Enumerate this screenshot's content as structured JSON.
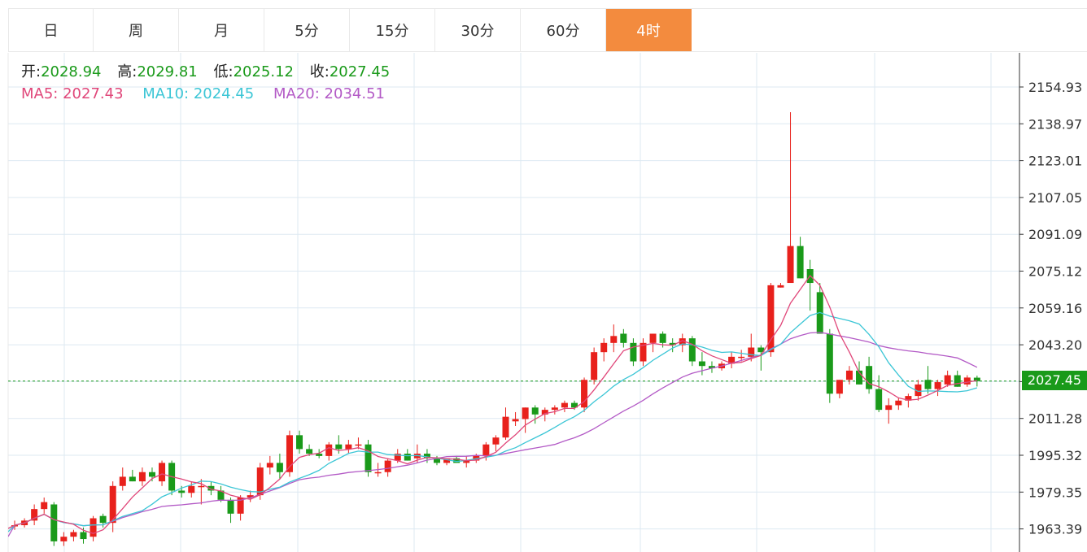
{
  "tabs": [
    {
      "label": "日",
      "active": false
    },
    {
      "label": "周",
      "active": false
    },
    {
      "label": "月",
      "active": false
    },
    {
      "label": "5分",
      "active": false
    },
    {
      "label": "15分",
      "active": false
    },
    {
      "label": "30分",
      "active": false
    },
    {
      "label": "60分",
      "active": false
    },
    {
      "label": "4时",
      "active": true
    }
  ],
  "ohlc": {
    "open_label": "开:",
    "open": "2028.94",
    "high_label": "高:",
    "high": "2029.81",
    "low_label": "低:",
    "low": "2025.12",
    "close_label": "收:",
    "close": "2027.45"
  },
  "ma": {
    "ma5_label": "MA5:",
    "ma5": "2027.43",
    "ma10_label": "MA10:",
    "ma10": "2024.45",
    "ma20_label": "MA20:",
    "ma20": "2034.51"
  },
  "colors": {
    "up": "#e8211c",
    "down": "#1a9a1a",
    "ma5": "#e0477a",
    "ma10": "#3cc6d6",
    "ma20": "#b35ac6",
    "grid": "#dde9f2",
    "active_tab": "#f38b3e"
  },
  "chart_data": {
    "type": "candlestick",
    "y_ticks": [
      "2154.93",
      "2138.97",
      "2123.01",
      "2107.05",
      "2091.09",
      "2075.12",
      "2059.16",
      "2043.20",
      "2027.25",
      "2011.28",
      "1995.32",
      "1979.35",
      "1963.39"
    ],
    "ylim": [
      1958,
      2168
    ],
    "last_price": "2027.45",
    "candles": [
      [
        1965,
        1967,
        1963,
        1965
      ],
      [
        1965,
        1968,
        1964,
        1967
      ],
      [
        1967,
        1974,
        1965,
        1972
      ],
      [
        1972,
        1977,
        1970,
        1975
      ],
      [
        1974,
        1975,
        1956,
        1958
      ],
      [
        1958,
        1962,
        1956,
        1960
      ],
      [
        1960,
        1963,
        1958,
        1962
      ],
      [
        1962,
        1964,
        1957,
        1959
      ],
      [
        1960,
        1969,
        1958,
        1968
      ],
      [
        1969,
        1970,
        1964,
        1966
      ],
      [
        1966,
        1984,
        1962,
        1982
      ],
      [
        1982,
        1990,
        1980,
        1986
      ],
      [
        1986,
        1989,
        1984,
        1984
      ],
      [
        1984,
        1990,
        1982,
        1988
      ],
      [
        1988,
        1990,
        1984,
        1986
      ],
      [
        1984,
        1993,
        1982,
        1992
      ],
      [
        1992,
        1993,
        1978,
        1980
      ],
      [
        1980,
        1982,
        1977,
        1979
      ],
      [
        1979,
        1984,
        1977,
        1982
      ],
      [
        1982,
        1985,
        1974,
        1982
      ],
      [
        1982,
        1984,
        1978,
        1980
      ],
      [
        1980,
        1982,
        1975,
        1976
      ],
      [
        1976,
        1977,
        1966,
        1970
      ],
      [
        1970,
        1978,
        1967,
        1977
      ],
      [
        1977,
        1980,
        1975,
        1978
      ],
      [
        1978,
        1992,
        1976,
        1990
      ],
      [
        1990,
        1995,
        1987,
        1992
      ],
      [
        1992,
        1996,
        1985,
        1988
      ],
      [
        1988,
        2006,
        1986,
        2004
      ],
      [
        2004,
        2006,
        1996,
        1998
      ],
      [
        1998,
        2000,
        1995,
        1996
      ],
      [
        1996,
        1998,
        1994,
        1995
      ],
      [
        1995,
        2001,
        1993,
        2000
      ],
      [
        2000,
        2004,
        1996,
        1998
      ],
      [
        1998,
        2002,
        1996,
        2000
      ],
      [
        2000,
        2003,
        1998,
        2000
      ],
      [
        2000,
        2002,
        1986,
        1988
      ],
      [
        1988,
        1992,
        1986,
        1988
      ],
      [
        1988,
        1994,
        1986,
        1993
      ],
      [
        1993,
        1998,
        1992,
        1996
      ],
      [
        1996,
        1998,
        1993,
        1993
      ],
      [
        1994,
        2000,
        1992,
        1996
      ],
      [
        1996,
        1998,
        1992,
        1994
      ],
      [
        1994,
        1995,
        1991,
        1992
      ],
      [
        1992,
        1994,
        1991,
        1994
      ],
      [
        1994,
        1995,
        1992,
        1992
      ],
      [
        1992,
        1995,
        1990,
        1993
      ],
      [
        1993,
        1996,
        1992,
        1995
      ],
      [
        1995,
        2001,
        1993,
        2000
      ],
      [
        2000,
        2004,
        1997,
        2003
      ],
      [
        2003,
        2016,
        2002,
        2012
      ],
      [
        2010,
        2014,
        2008,
        2011
      ],
      [
        2011,
        2016,
        2005,
        2016
      ],
      [
        2016,
        2017,
        2009,
        2013
      ],
      [
        2013,
        2016,
        2010,
        2015
      ],
      [
        2015,
        2017,
        2013,
        2016
      ],
      [
        2016,
        2019,
        2014,
        2018
      ],
      [
        2018,
        2019,
        2015,
        2016
      ],
      [
        2016,
        2029,
        2014,
        2028
      ],
      [
        2028,
        2042,
        2026,
        2040
      ],
      [
        2040,
        2046,
        2036,
        2044
      ],
      [
        2044,
        2052,
        2040,
        2047
      ],
      [
        2048,
        2050,
        2042,
        2044
      ],
      [
        2044,
        2046,
        2034,
        2036
      ],
      [
        2036,
        2046,
        2034,
        2044
      ],
      [
        2044,
        2048,
        2040,
        2048
      ],
      [
        2048,
        2049,
        2042,
        2044
      ],
      [
        2044,
        2046,
        2040,
        2043
      ],
      [
        2043,
        2048,
        2040,
        2046
      ],
      [
        2046,
        2047,
        2034,
        2036
      ],
      [
        2036,
        2040,
        2030,
        2034
      ],
      [
        2034,
        2036,
        2031,
        2033
      ],
      [
        2033,
        2036,
        2032,
        2035
      ],
      [
        2035,
        2040,
        2033,
        2038
      ],
      [
        2038,
        2041,
        2036,
        2038
      ],
      [
        2038,
        2048,
        2036,
        2042
      ],
      [
        2042,
        2043,
        2032,
        2040
      ],
      [
        2040,
        2070,
        2038,
        2069
      ],
      [
        2068,
        2070,
        2068,
        2069
      ],
      [
        2070,
        2144,
        2070,
        2086
      ],
      [
        2086,
        2090,
        2072,
        2072
      ],
      [
        2076,
        2080,
        2058,
        2070
      ],
      [
        2066,
        2070,
        2048,
        2048
      ],
      [
        2048,
        2050,
        2018,
        2022
      ],
      [
        2022,
        2028,
        2020,
        2028
      ],
      [
        2028,
        2034,
        2026,
        2032
      ],
      [
        2032,
        2036,
        2026,
        2026
      ],
      [
        2034,
        2038,
        2022,
        2024
      ],
      [
        2024,
        2030,
        2014,
        2015
      ],
      [
        2015,
        2020,
        2009,
        2017
      ],
      [
        2017,
        2020,
        2015,
        2019
      ],
      [
        2019,
        2022,
        2016,
        2021
      ],
      [
        2021,
        2028,
        2019,
        2026
      ],
      [
        2028,
        2034,
        2022,
        2024
      ],
      [
        2024,
        2028,
        2021,
        2027
      ],
      [
        2026,
        2032,
        2025,
        2030
      ],
      [
        2030,
        2032,
        2025,
        2025
      ],
      [
        2026,
        2030,
        2025,
        2029
      ],
      [
        2028.94,
        2029.81,
        2025.12,
        2027.45
      ]
    ]
  }
}
